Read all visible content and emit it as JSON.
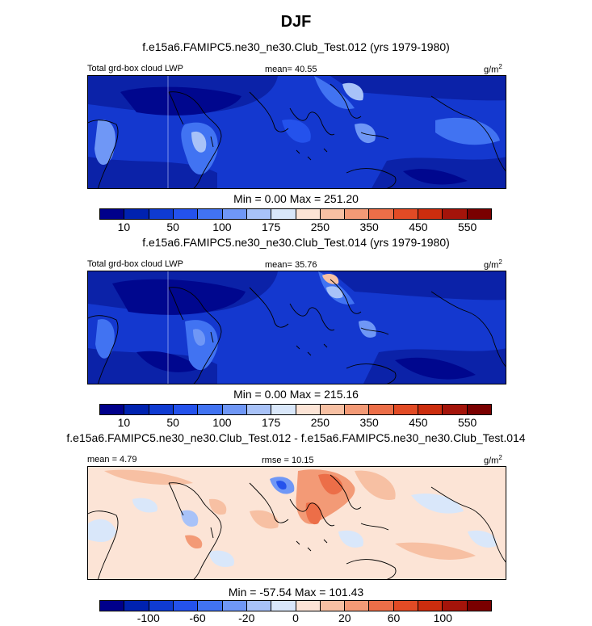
{
  "figure": {
    "title": "DJF"
  },
  "panels": [
    {
      "run_title": "f.e15a6.FAMIPC5.ne30_ne30.Club_Test.012 (yrs 1979-1980)",
      "left_label": "Total grd-box cloud LWP",
      "center_label": "mean=  40.55",
      "units_base": "g/m",
      "units_exp": "2",
      "minmax": "Min =   0.00 Max = 251.20",
      "colorbar_labels": [
        "10",
        "50",
        "100",
        "175",
        "250",
        "350",
        "450",
        "550"
      ],
      "colors": [
        "#00008b",
        "#0022b0",
        "#0f3bd2",
        "#2452ec",
        "#4173f2",
        "#6f97f6",
        "#a8c2f8",
        "#d9e7fa",
        "#fce4d6",
        "#f7c0a3",
        "#f39a76",
        "#ec6e48",
        "#e24b25",
        "#cc2d0e",
        "#a4140a",
        "#7a0000"
      ]
    },
    {
      "run_title": "f.e15a6.FAMIPC5.ne30_ne30.Club_Test.014 (yrs 1979-1980)",
      "left_label": "Total grd-box cloud LWP",
      "center_label": "mean=  35.76",
      "units_base": "g/m",
      "units_exp": "2",
      "minmax": "Min =   0.00 Max = 215.16",
      "colorbar_labels": [
        "10",
        "50",
        "100",
        "175",
        "250",
        "350",
        "450",
        "550"
      ],
      "colors": [
        "#00008b",
        "#0022b0",
        "#0f3bd2",
        "#2452ec",
        "#4173f2",
        "#6f97f6",
        "#a8c2f8",
        "#d9e7fa",
        "#fce4d6",
        "#f7c0a3",
        "#f39a76",
        "#ec6e48",
        "#e24b25",
        "#cc2d0e",
        "#a4140a",
        "#7a0000"
      ]
    },
    {
      "run_title": "f.e15a6.FAMIPC5.ne30_ne30.Club_Test.012 - f.e15a6.FAMIPC5.ne30_ne30.Club_Test.014",
      "left_label": "mean =  4.79",
      "center_label": "rmse =  10.15",
      "units_base": "g/m",
      "units_exp": "2",
      "minmax": "Min = -57.54 Max = 101.43",
      "colorbar_labels": [
        "-100",
        "-60",
        "-20",
        "0",
        "20",
        "60",
        "100"
      ],
      "colors": [
        "#00008b",
        "#0022b0",
        "#0f3bd2",
        "#2452ec",
        "#4173f2",
        "#6f97f6",
        "#a8c2f8",
        "#d9e7fa",
        "#fce4d6",
        "#f7c0a3",
        "#f39a76",
        "#ec6e48",
        "#e24b25",
        "#cc2d0e",
        "#a4140a",
        "#7a0000"
      ]
    }
  ]
}
